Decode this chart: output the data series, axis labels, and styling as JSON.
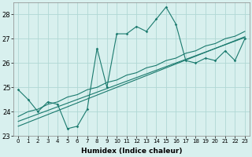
{
  "x": [
    0,
    1,
    2,
    3,
    4,
    5,
    6,
    7,
    8,
    9,
    10,
    11,
    12,
    13,
    14,
    15,
    16,
    17,
    18,
    19,
    20,
    21,
    22,
    23
  ],
  "y_main": [
    24.9,
    24.5,
    24.0,
    24.4,
    24.3,
    23.3,
    23.4,
    24.1,
    26.6,
    25.0,
    27.2,
    27.2,
    27.5,
    27.3,
    27.8,
    28.3,
    27.6,
    26.1,
    26.0,
    26.2,
    26.1,
    26.5,
    26.1,
    27.0
  ],
  "y_line1": [
    23.8,
    24.0,
    24.1,
    24.3,
    24.4,
    24.6,
    24.7,
    24.9,
    25.0,
    25.2,
    25.3,
    25.5,
    25.6,
    25.8,
    25.9,
    26.1,
    26.2,
    26.4,
    26.5,
    26.7,
    26.8,
    27.0,
    27.1,
    27.3
  ],
  "y_line2": [
    23.6,
    23.75,
    23.9,
    24.05,
    24.2,
    24.35,
    24.5,
    24.65,
    24.8,
    24.95,
    25.1,
    25.25,
    25.4,
    25.55,
    25.7,
    25.85,
    26.0,
    26.15,
    26.3,
    26.45,
    26.6,
    26.75,
    26.9,
    27.05
  ],
  "y_line3": [
    23.4,
    23.56,
    23.72,
    23.88,
    24.04,
    24.2,
    24.36,
    24.52,
    24.68,
    24.84,
    25.0,
    25.16,
    25.32,
    25.48,
    25.64,
    25.8,
    25.96,
    26.12,
    26.28,
    26.44,
    26.6,
    26.76,
    26.92,
    27.08
  ],
  "line_color": "#1a7a6e",
  "bg_color": "#d8f0ee",
  "grid_color": "#b0d8d4",
  "xlabel": "Humidex (Indice chaleur)",
  "xlim": [
    -0.5,
    23.5
  ],
  "ylim": [
    23,
    28.5
  ],
  "yticks": [
    23,
    24,
    25,
    26,
    27,
    28
  ],
  "xtick_labels": [
    "0",
    "1",
    "2",
    "3",
    "4",
    "5",
    "6",
    "7",
    "8",
    "9",
    "10",
    "11",
    "12",
    "13",
    "14",
    "15",
    "16",
    "17",
    "18",
    "19",
    "20",
    "21",
    "22",
    "23"
  ],
  "marker_x": [
    0,
    1,
    2,
    3,
    4,
    5,
    6,
    7,
    8,
    9,
    10,
    11,
    12,
    13,
    14,
    15,
    16,
    17,
    18,
    19,
    20,
    21,
    22,
    23
  ]
}
